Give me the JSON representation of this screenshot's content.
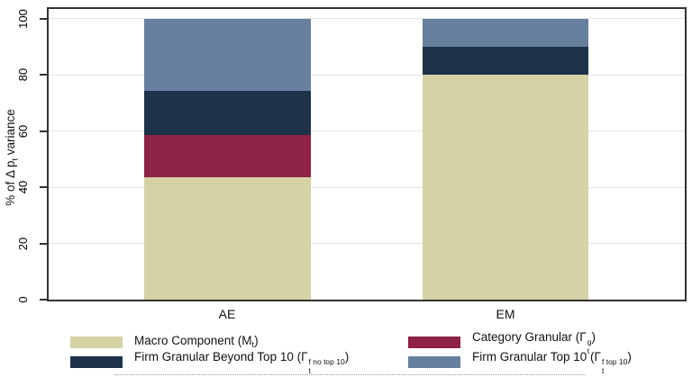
{
  "chart_data": {
    "type": "bar",
    "subtype": "stacked_percent",
    "categories": [
      "AE",
      "EM"
    ],
    "series": [
      {
        "name": "Macro Component (M_t)",
        "color": "#d5d2a6",
        "values": [
          43.5,
          80
        ],
        "label_parts": {
          "prefix": "Macro Component (",
          "sym": "M",
          "sub": "t",
          "sup": "",
          "suffix": ")"
        }
      },
      {
        "name": "Category Granular (Gamma_t^g)",
        "color": "#8e2247",
        "values": [
          15,
          0
        ],
        "label_parts": {
          "prefix": "Category Granular (",
          "sym": "Γ",
          "sub": "t",
          "sup": "g",
          "suffix": ")"
        }
      },
      {
        "name": "Firm Granular Beyond Top 10 (Gamma_t^f_no_top_10)",
        "color": "#1e3349",
        "values": [
          15.7,
          10
        ],
        "label_parts": {
          "prefix": "Firm Granular Beyond Top 10 (",
          "sym": "Γ",
          "sub": "t",
          "sup": "f no top 10",
          "suffix": ")"
        }
      },
      {
        "name": "Firm Granular Top 10 (Gamma_t^f_top_10)",
        "color": "#66809e",
        "values": [
          25.8,
          10
        ],
        "label_parts": {
          "prefix": "Firm Granular Top 10 (",
          "sym": "Γ",
          "sub": "t",
          "sup": "f top 10",
          "suffix": ")"
        }
      }
    ],
    "ylabel": {
      "prefix": "% of Δ p",
      "sub": "t",
      "suffix": " variance"
    },
    "yticks": [
      0,
      20,
      40,
      60,
      80,
      100
    ],
    "ylim": [
      0,
      100
    ],
    "grid": true,
    "legend_position": "bottom",
    "style": {
      "gridline": "#e4e4e4",
      "axis": "#333333",
      "background": "#ffffff",
      "text": "#111111"
    }
  }
}
